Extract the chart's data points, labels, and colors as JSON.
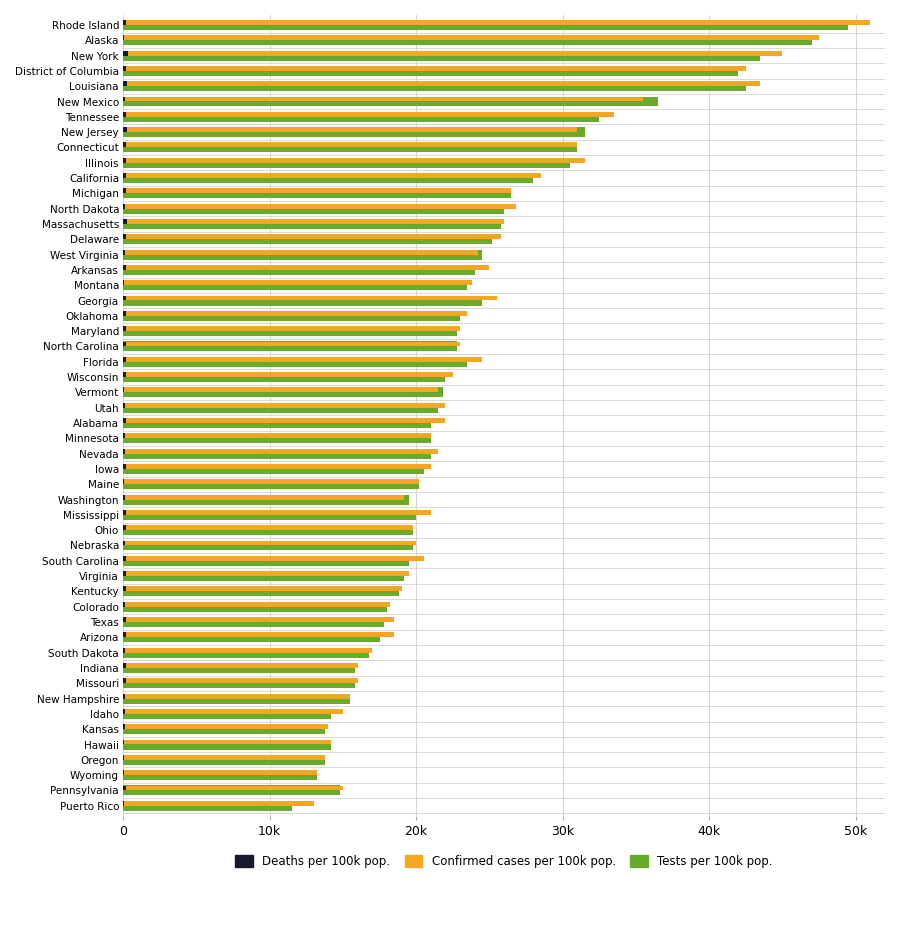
{
  "chart_data": [
    [
      "Rhode Island",
      49500,
      51000,
      180
    ],
    [
      "Alaska",
      47000,
      47500,
      50
    ],
    [
      "New York",
      43500,
      45000,
      300
    ],
    [
      "District of Columbia",
      42000,
      42500,
      200
    ],
    [
      "Louisiana",
      42500,
      43500,
      280
    ],
    [
      "New Mexico",
      36500,
      35500,
      140
    ],
    [
      "Tennessee",
      32500,
      33500,
      210
    ],
    [
      "New Jersey",
      31500,
      31000,
      260
    ],
    [
      "Connecticut",
      31000,
      31000,
      210
    ],
    [
      "Illinois",
      30500,
      31500,
      200
    ],
    [
      "California",
      28000,
      28500,
      160
    ],
    [
      "Michigan",
      26500,
      26500,
      220
    ],
    [
      "North Dakota",
      26000,
      26800,
      110
    ],
    [
      "Massachusetts",
      25800,
      26000,
      270
    ],
    [
      "Delaware",
      25200,
      25800,
      160
    ],
    [
      "West Virginia",
      24500,
      24200,
      110
    ],
    [
      "Arkansas",
      24000,
      25000,
      160
    ],
    [
      "Montana",
      23500,
      23800,
      80
    ],
    [
      "Georgia",
      24500,
      25500,
      210
    ],
    [
      "Oklahoma",
      23000,
      23500,
      160
    ],
    [
      "Maryland",
      22800,
      23000,
      220
    ],
    [
      "North Carolina",
      22800,
      23000,
      160
    ],
    [
      "Florida",
      23500,
      24500,
      200
    ],
    [
      "Wisconsin",
      22000,
      22500,
      160
    ],
    [
      "Vermont",
      21800,
      21500,
      70
    ],
    [
      "Utah",
      21500,
      22000,
      110
    ],
    [
      "Alabama",
      21000,
      22000,
      190
    ],
    [
      "Minnesota",
      21000,
      21000,
      150
    ],
    [
      "Nevada",
      21000,
      21500,
      150
    ],
    [
      "Iowa",
      20500,
      21000,
      160
    ],
    [
      "Maine",
      20200,
      20200,
      80
    ],
    [
      "Washington",
      19500,
      19200,
      110
    ],
    [
      "Mississippi",
      20000,
      21000,
      220
    ],
    [
      "Ohio",
      19800,
      19800,
      160
    ],
    [
      "Nebraska",
      19800,
      20000,
      110
    ],
    [
      "South Carolina",
      19500,
      20500,
      190
    ],
    [
      "Virginia",
      19200,
      19500,
      160
    ],
    [
      "Kentucky",
      18800,
      19000,
      160
    ],
    [
      "Colorado",
      18000,
      18200,
      150
    ],
    [
      "Texas",
      17800,
      18500,
      160
    ],
    [
      "Arizona",
      17500,
      18500,
      210
    ],
    [
      "South Dakota",
      16800,
      17000,
      110
    ],
    [
      "Indiana",
      15800,
      16000,
      210
    ],
    [
      "Missouri",
      15800,
      16000,
      160
    ],
    [
      "New Hampshire",
      15500,
      15500,
      110
    ],
    [
      "Idaho",
      14200,
      15000,
      110
    ],
    [
      "Kansas",
      13800,
      14000,
      110
    ],
    [
      "Hawaii",
      14200,
      14200,
      50
    ],
    [
      "Oregon",
      13800,
      13800,
      80
    ],
    [
      "Wyoming",
      13200,
      13200,
      80
    ],
    [
      "Pennsylvania",
      14800,
      15000,
      220
    ],
    [
      "Puerto Rico",
      11500,
      13000,
      70
    ]
  ],
  "color_tests": "#6aaa2a",
  "color_cases": "#f5a623",
  "color_deaths": "#1a1a2e",
  "xlim_max": 52000,
  "xticks": [
    0,
    10000,
    20000,
    30000,
    40000,
    50000
  ],
  "xticklabels": [
    "0",
    "10k",
    "20k",
    "30k",
    "40k",
    "50k"
  ]
}
